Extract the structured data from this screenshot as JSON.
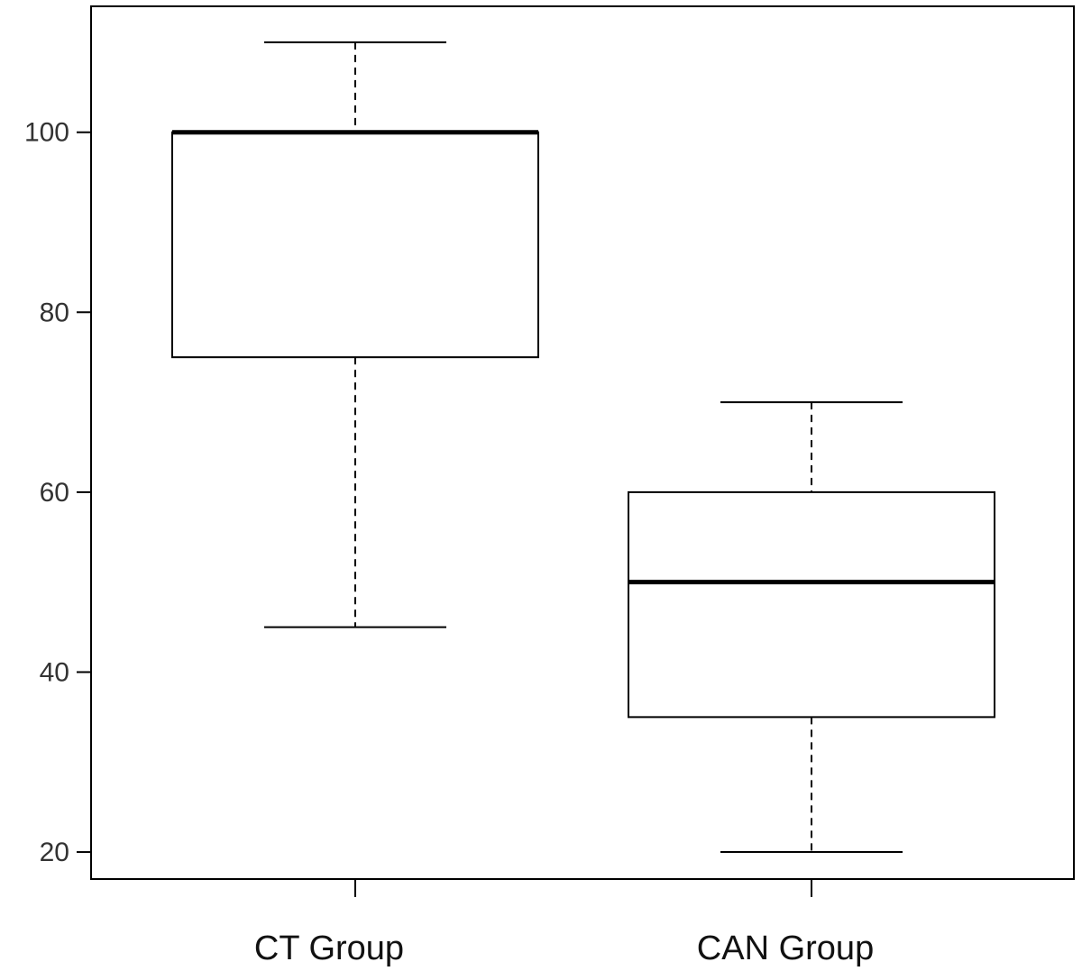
{
  "chart_data": {
    "type": "box",
    "title": "",
    "xlabel": "",
    "ylabel": "",
    "ylim": [
      17,
      114
    ],
    "yticks": [
      20,
      40,
      60,
      80,
      100
    ],
    "grid": false,
    "categories": [
      "CT Group",
      "CAN Group"
    ],
    "boxes": [
      {
        "category": "CT Group",
        "min": 45,
        "q1": 75,
        "median": 100,
        "q3": 100,
        "max": 110
      },
      {
        "category": "CAN Group",
        "min": 20,
        "q1": 35,
        "median": 50,
        "q3": 60,
        "max": 70
      }
    ]
  }
}
